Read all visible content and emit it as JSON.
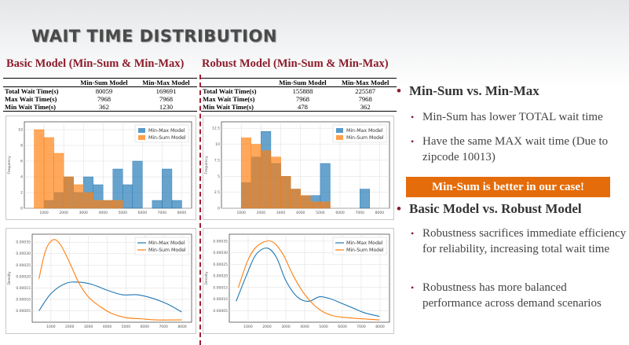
{
  "title": "WAIT TIME DISTRIBUTION",
  "basic": {
    "heading": "Basic Model (Min-Sum & Min-Max)",
    "table": {
      "columns": [
        "",
        "Min-Sum Model",
        "Min-Max Model"
      ],
      "rows": [
        {
          "label": "Total Wait Time(s)",
          "min_sum": "80059",
          "min_max": "169691"
        },
        {
          "label": "Max Wait Time(s)",
          "min_sum": "7968",
          "min_max": "7968"
        },
        {
          "label": "Min Wait Time(s)",
          "min_sum": "362",
          "min_max": "1230"
        }
      ]
    }
  },
  "robust": {
    "heading": "Robust Model (Min-Sum & Min-Max)",
    "table": {
      "columns": [
        "",
        "Min-Sum Model",
        "Min-Max Model"
      ],
      "rows": [
        {
          "label": "Total Wait Time(s)",
          "min_sum": "155888",
          "min_max": "225587"
        },
        {
          "label": "Max Wait Time(s)",
          "min_sum": "7968",
          "min_max": "7968"
        },
        {
          "label": "Min Wait Time(s)",
          "min_sum": "478",
          "min_max": "362"
        }
      ]
    }
  },
  "colors": {
    "min_max": "#1f77b4",
    "min_sum": "#ff7f0e",
    "accent": "#8b1c2b",
    "callout": "#e46c0a"
  },
  "chart_data": [
    {
      "type": "bar",
      "name": "basic-histogram",
      "ylabel": "Frequency",
      "legend": "top-right",
      "bin_width": 500,
      "x_ticks": [
        1000,
        2000,
        3000,
        4000,
        5000,
        6000,
        7000,
        8000
      ],
      "y_ticks": [
        0,
        2,
        4,
        6,
        8,
        10
      ],
      "xlim": [
        0,
        8500
      ],
      "ylim": [
        0,
        11
      ],
      "grid": true,
      "series": [
        {
          "name": "Min-Max Model",
          "x_start": [
            1000,
            1500,
            2000,
            2500,
            3000,
            3500,
            4000,
            4500,
            5000,
            5500,
            6000,
            6500,
            7000,
            7500
          ],
          "values": [
            1,
            2,
            4,
            2,
            4,
            3,
            1,
            5,
            3,
            6,
            0,
            1,
            5,
            1
          ]
        },
        {
          "name": "Min-Sum Model",
          "x_start": [
            500,
            1000,
            1500,
            2000,
            2500,
            3000,
            3500,
            4000,
            4500
          ],
          "values": [
            10,
            9,
            7,
            4,
            3,
            2,
            1,
            1,
            1
          ]
        }
      ]
    },
    {
      "type": "bar",
      "name": "robust-histogram",
      "ylabel": "Frequency",
      "legend": "top-right",
      "bin_width": 500,
      "x_ticks": [
        1000,
        2000,
        3000,
        4000,
        5000,
        6000,
        7000,
        8000
      ],
      "y_ticks": [
        0,
        2.5,
        5.0,
        7.5,
        10.0,
        12.5
      ],
      "xlim": [
        0,
        8500
      ],
      "ylim": [
        0,
        13.5
      ],
      "grid": true,
      "series": [
        {
          "name": "Min-Max Model",
          "x_start": [
            1000,
            1500,
            2000,
            2500,
            3000,
            3500,
            4000,
            4500,
            5000,
            7000
          ],
          "values": [
            4,
            8,
            12,
            7,
            5,
            3,
            2,
            2,
            7,
            3
          ]
        },
        {
          "name": "Min-Sum Model",
          "x_start": [
            1000,
            1500,
            2000,
            2500,
            3000,
            3500,
            4000,
            4500,
            5000
          ],
          "values": [
            11,
            10,
            9,
            8,
            5,
            3,
            2,
            1,
            1
          ]
        }
      ]
    },
    {
      "type": "line",
      "name": "basic-density",
      "ylabel": "Density",
      "legend": "top-right",
      "x_ticks": [
        1000,
        2000,
        3000,
        4000,
        5000,
        6000,
        7000,
        8000
      ],
      "y_ticks": [
        5e-05,
        0.0001,
        0.00015,
        0.0002,
        0.00025,
        0.0003,
        0.00035
      ],
      "y_tick_labels": [
        "0.00005",
        "0.00010",
        "0.00015",
        "0.00020",
        "0.00025",
        "0.00030",
        "0.00035"
      ],
      "xlim": [
        0,
        8500
      ],
      "ylim": [
        0,
        0.000385
      ],
      "grid": true,
      "series": [
        {
          "name": "Min-Max Model",
          "x": [
            362,
            1000,
            1800,
            2500,
            3200,
            4000,
            4800,
            5600,
            6400,
            7200,
            7968
          ],
          "y": [
            5e-05,
            0.000125,
            0.00017,
            0.000175,
            0.000165,
            0.00014,
            0.00012,
            0.00012,
            0.000105,
            8e-05,
            4.5e-05
          ]
        },
        {
          "name": "Min-Sum Model",
          "x": [
            362,
            700,
            1100,
            1500,
            2000,
            2500,
            3000,
            3600,
            4200,
            5000,
            5800,
            6600,
            7400,
            7968
          ],
          "y": [
            0.00019,
            0.00031,
            0.00036,
            0.00034,
            0.00026,
            0.00017,
            0.00011,
            7e-05,
            4e-05,
            2e-05,
            1.5e-05,
            1e-05,
            1e-05,
            1e-05
          ]
        }
      ]
    },
    {
      "type": "line",
      "name": "robust-density",
      "ylabel": "Density",
      "legend": "top-right",
      "x_ticks": [
        1000,
        2000,
        3000,
        4000,
        5000,
        6000,
        7000,
        8000
      ],
      "y_ticks": [
        5e-05,
        0.0001,
        0.00015,
        0.0002,
        0.00025,
        0.0003,
        0.00035
      ],
      "y_tick_labels": [
        "0.00005",
        "0.00010",
        "0.00015",
        "0.00020",
        "0.00025",
        "0.00030",
        "0.00035"
      ],
      "xlim": [
        0,
        8500
      ],
      "ylim": [
        0,
        0.00038
      ],
      "grid": true,
      "series": [
        {
          "name": "Min-Max Model",
          "x": [
            362,
            900,
            1400,
            2000,
            2500,
            3000,
            3600,
            4200,
            4800,
            5400,
            6000,
            6600,
            7200,
            7968
          ],
          "y": [
            9e-05,
            0.0002,
            0.00029,
            0.00032,
            0.00028,
            0.00018,
            0.00011,
            9e-05,
            0.00011,
            0.0001,
            8e-05,
            6e-05,
            4e-05,
            2.5e-05
          ]
        },
        {
          "name": "Min-Sum Model",
          "x": [
            478,
            1000,
            1500,
            2200,
            2800,
            3400,
            4000,
            4700,
            5400,
            6200,
            7000,
            7968
          ],
          "y": [
            0.00015,
            0.00027,
            0.00033,
            0.00035,
            0.0003,
            0.0002,
            0.00012,
            6e-05,
            3e-05,
            2e-05,
            1.5e-05,
            1e-05
          ]
        }
      ]
    }
  ],
  "points": [
    {
      "heading": "Min-Sum vs. Min-Max",
      "items": [
        "Min-Sum has lower TOTAL wait time",
        "Have the same MAX wait time (Due to zipcode 10013)"
      ]
    },
    {
      "heading": "Basic Model vs. Robust Model",
      "items": [
        "Robustness sacrifices immediate efficiency for reliability, increasing total wait time",
        "Robustness has more balanced performance across demand scenarios"
      ]
    }
  ],
  "callout": "Min-Sum is better in our case!"
}
